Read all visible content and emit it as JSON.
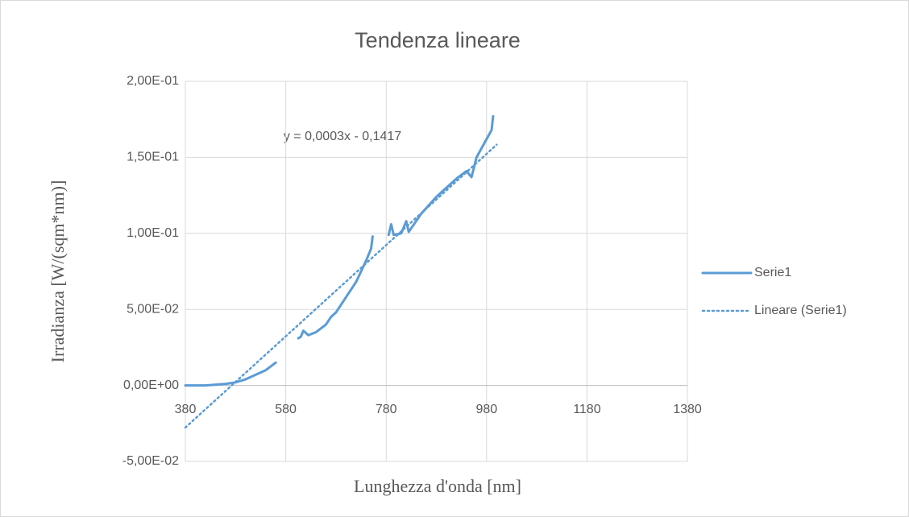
{
  "chart_data": {
    "type": "line",
    "title": "Tendenza lineare",
    "xlabel": "Lunghezza d'onda [nm]",
    "ylabel": "Irradianza [W/(sqm*nm)]",
    "annotation": "y = 0,0003x - 0,1417",
    "xlim": [
      380,
      1380
    ],
    "xticks": [
      380,
      580,
      780,
      980,
      1180,
      1380
    ],
    "ylim": [
      -0.05,
      0.2
    ],
    "yticks": [
      {
        "value": -0.05,
        "label": "-5,00E-02"
      },
      {
        "value": 0,
        "label": "0,00E+00"
      },
      {
        "value": 0.05,
        "label": "5,00E-02"
      },
      {
        "value": 0.1,
        "label": "1,00E-01"
      },
      {
        "value": 0.15,
        "label": "1,50E-01"
      },
      {
        "value": 0.2,
        "label": "2,00E-01"
      }
    ],
    "grid": true,
    "legend": "right",
    "series": [
      {
        "name": "Serie1",
        "color": "#5b9bd5",
        "style": "solid",
        "x": [
          380,
          420,
          460,
          480,
          500,
          520,
          540,
          560,
          null,
          605,
          610,
          615,
          625,
          640,
          660,
          670,
          680,
          700,
          720,
          740,
          750,
          753,
          null,
          785,
          790,
          795,
          810,
          820,
          825,
          850,
          880,
          900,
          920,
          940,
          950,
          960,
          980,
          990,
          993
        ],
        "values": [
          0,
          0,
          0.001,
          0.002,
          0.004,
          0.007,
          0.01,
          0.015,
          null,
          0.031,
          0.032,
          0.036,
          0.033,
          0.035,
          0.04,
          0.045,
          0.048,
          0.058,
          0.068,
          0.082,
          0.09,
          0.098,
          null,
          0.099,
          0.106,
          0.099,
          0.1,
          0.108,
          0.101,
          0.113,
          0.124,
          0.13,
          0.136,
          0.141,
          0.137,
          0.15,
          0.162,
          0.168,
          0.177
        ]
      },
      {
        "name": "Lineare (Serie1)",
        "color": "#5b9bd5",
        "style": "dotted",
        "x": [
          380,
          1000
        ],
        "values": [
          -0.0277,
          0.1583
        ]
      }
    ]
  }
}
